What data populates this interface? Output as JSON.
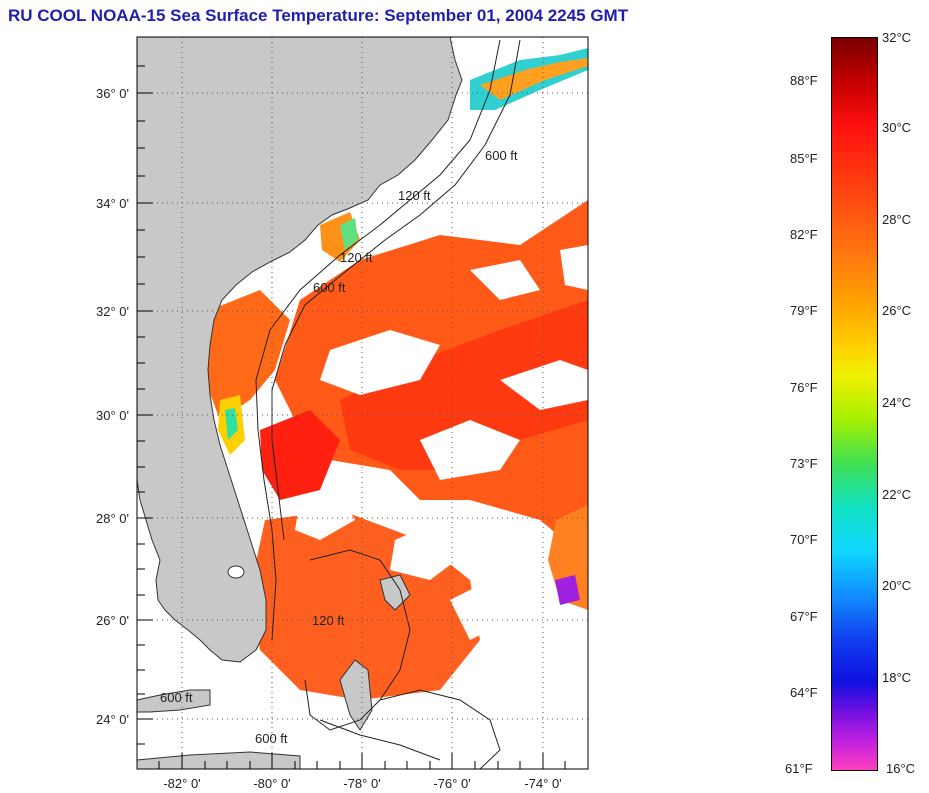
{
  "title": "RU COOL  NOAA-15  Sea Surface Temperature:  September 01, 2004 2245 GMT",
  "map": {
    "lat_labels": [
      "36° 0'",
      "34° 0'",
      "32° 0'",
      "30° 0'",
      "28° 0'",
      "26° 0'",
      "24° 0'"
    ],
    "lon_labels": [
      "-82° 0'",
      "-80° 0'",
      "-78° 0'",
      "-76° 0'",
      "-74° 0'"
    ],
    "contour_labels": [
      "120 ft",
      "600 ft",
      "120 ft",
      "600 ft",
      "600 ft",
      "120 ft",
      "600 ft"
    ]
  },
  "colorbar": {
    "fahrenheit": [
      "88°F",
      "85°F",
      "82°F",
      "79°F",
      "76°F",
      "73°F",
      "70°F",
      "67°F",
      "64°F",
      "61°F"
    ],
    "celsius": [
      "32°C",
      "30°C",
      "28°C",
      "26°C",
      "24°C",
      "22°C",
      "20°C",
      "18°C",
      "16°C"
    ]
  },
  "colors": {
    "title": "#1f1fae",
    "land": "#c8c8c8",
    "ocean_no_data": "#ffffff",
    "sst_warm": "#ff4a10",
    "sst_hot": "#ff1a10"
  }
}
